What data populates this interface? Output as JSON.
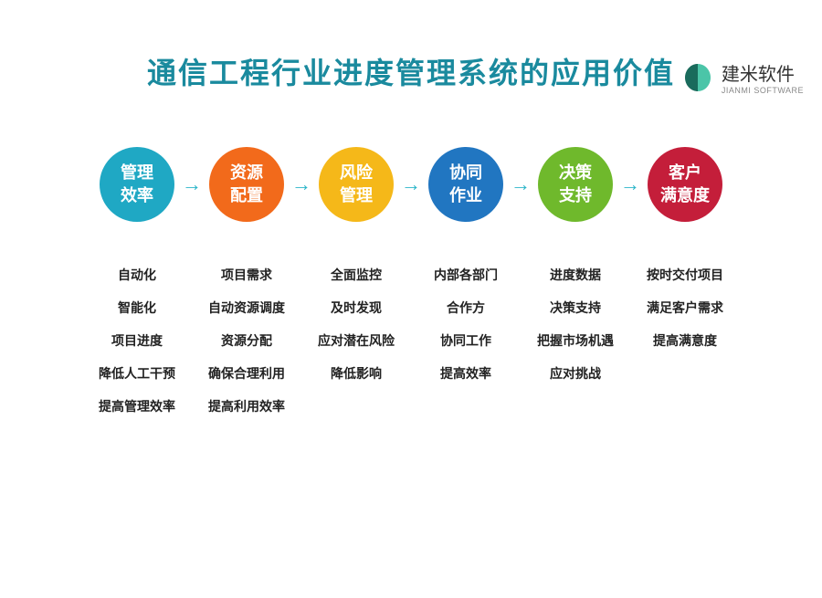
{
  "logo": {
    "title": "建米软件",
    "subtitle": "JIANMI SOFTWARE",
    "colors": {
      "dark": "#1a6b5c",
      "light": "#4bc5a8"
    }
  },
  "title": {
    "text": "通信工程行业进度管理系统的应用价值",
    "color": "#1a8a9e",
    "fontsize": 32
  },
  "arrow_color": "#2bb5c9",
  "nodes": [
    {
      "line1": "管理",
      "line2": "效率",
      "color": "#1fa8c4",
      "items": [
        "自动化",
        "智能化",
        "项目进度",
        "降低人工干预",
        "提高管理效率"
      ]
    },
    {
      "line1": "资源",
      "line2": "配置",
      "color": "#f26a1b",
      "items": [
        "项目需求",
        "自动资源调度",
        "资源分配",
        "确保合理利用",
        "提高利用效率"
      ]
    },
    {
      "line1": "风险",
      "line2": "管理",
      "color": "#f5b819",
      "items": [
        "全面监控",
        "及时发现",
        "应对潜在风险",
        "降低影响"
      ]
    },
    {
      "line1": "协同",
      "line2": "作业",
      "color": "#2176c1",
      "items": [
        "内部各部门",
        "合作方",
        "协同工作",
        "提高效率"
      ]
    },
    {
      "line1": "决策",
      "line2": "支持",
      "color": "#6fb92c",
      "items": [
        "进度数据",
        "决策支持",
        "把握市场机遇",
        "应对挑战"
      ]
    },
    {
      "line1": "客户",
      "line2": "满意度",
      "color": "#c41e3a",
      "items": [
        "按时交付项目",
        "满足客户需求",
        "提高满意度"
      ]
    }
  ]
}
